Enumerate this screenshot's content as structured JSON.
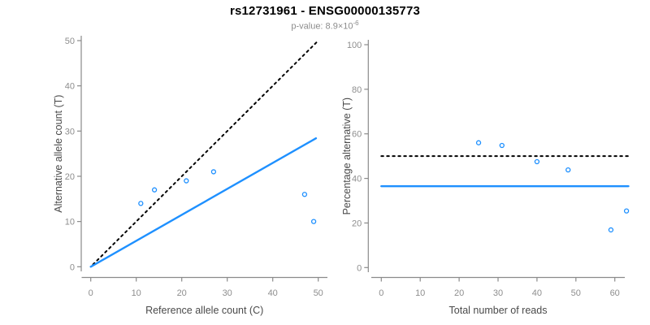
{
  "header": {
    "title": "rs12731961 - ENSG00000135773",
    "subtitle_base": "p-value: 8.9×10",
    "subtitle_exponent": "-6"
  },
  "colors": {
    "accent_blue": "#1E90FF",
    "axis_line": "#8a8a8a",
    "tick_label": "#8e8e8e",
    "axis_title": "#4a4a4a",
    "dotted_line": "#000000"
  },
  "chart_data": [
    {
      "type": "scatter",
      "name": "allele-counts-panel",
      "xlabel": "Reference allele count (C)",
      "ylabel": "Alternative allele count (T)",
      "xlim": [
        0,
        50
      ],
      "ylim": [
        0,
        50
      ],
      "xticks": [
        0,
        10,
        20,
        30,
        40,
        50
      ],
      "yticks": [
        0,
        10,
        20,
        30,
        40,
        50
      ],
      "grid": false,
      "legend": null,
      "points": [
        [
          11,
          14
        ],
        [
          14,
          17
        ],
        [
          21,
          19
        ],
        [
          27,
          21
        ],
        [
          47,
          16
        ],
        [
          49,
          10
        ]
      ],
      "lines": [
        {
          "label": "identity-line",
          "style": "dotted",
          "color": "#000000",
          "x1": 0.5,
          "y1": 0.5,
          "x2": 49.6,
          "y2": 49.6
        },
        {
          "label": "regression-line",
          "style": "solid",
          "color": "#1E90FF",
          "x1": 0,
          "y1": 0,
          "x2": 49.5,
          "y2": 28.4
        }
      ]
    },
    {
      "type": "scatter",
      "name": "percentage-alternative-panel",
      "xlabel": "Total number of reads",
      "ylabel": "Percentage alternative (T)",
      "xlim": [
        0,
        60
      ],
      "ylim": [
        0,
        100
      ],
      "xticks": [
        0,
        10,
        20,
        30,
        40,
        50,
        60
      ],
      "yticks": [
        0,
        20,
        40,
        60,
        80,
        100
      ],
      "grid": false,
      "legend": null,
      "points": [
        [
          25,
          56
        ],
        [
          31,
          54.8
        ],
        [
          40,
          47.5
        ],
        [
          48,
          43.8
        ],
        [
          63,
          25.4
        ],
        [
          59,
          16.9
        ]
      ],
      "lines": [
        {
          "label": "fifty-percent-line",
          "style": "dotted",
          "color": "#000000",
          "x1": 0,
          "y1": 50,
          "x2": 63.5,
          "y2": 50
        },
        {
          "label": "mean-percentage-line",
          "style": "solid",
          "color": "#1E90FF",
          "x1": 0,
          "y1": 36.5,
          "x2": 63.5,
          "y2": 36.5
        }
      ]
    }
  ]
}
